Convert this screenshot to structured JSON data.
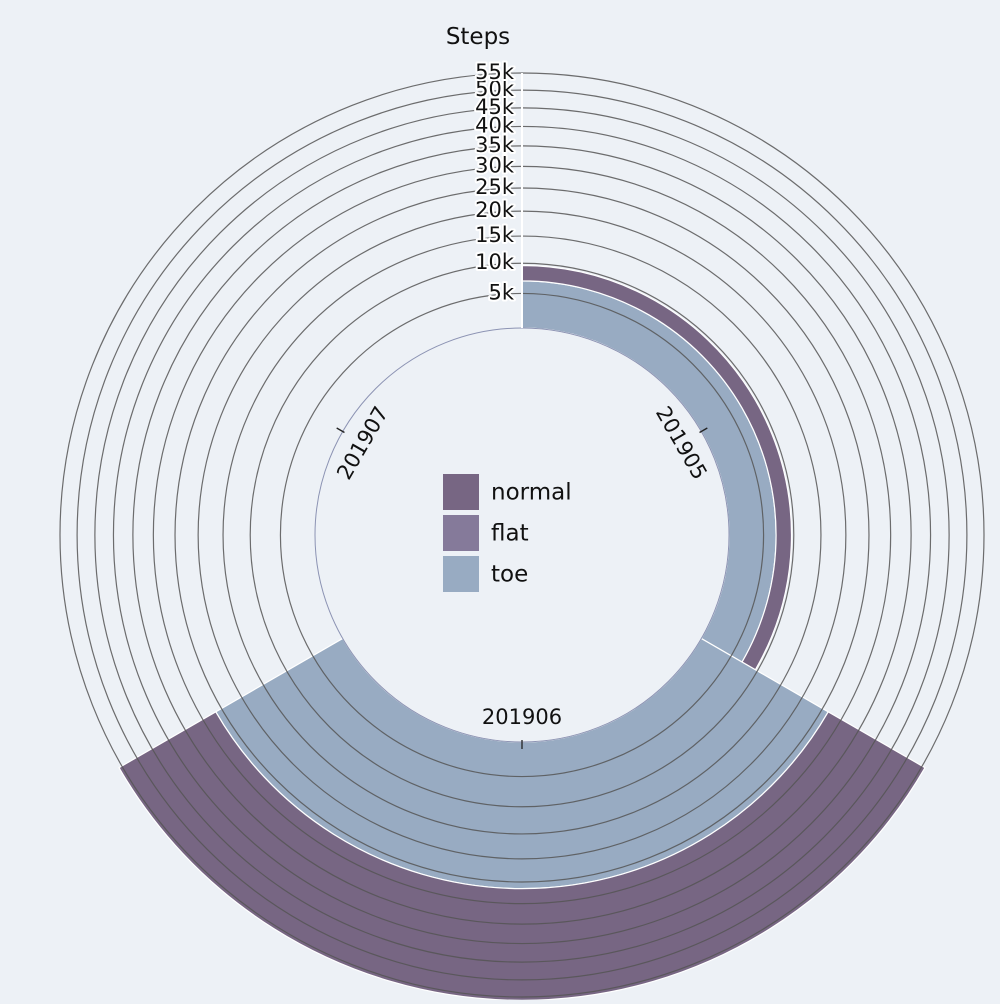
{
  "chart_data": {
    "type": "radial_stacked_bar",
    "title": "Steps",
    "categories": [
      "201905",
      "201906",
      "201907"
    ],
    "series": [
      {
        "name": "toe",
        "color": "#98abc2",
        "values": [
          7000,
          26500,
          0
        ]
      },
      {
        "name": "flat",
        "color": "#857a9a",
        "values": [
          0,
          0,
          0
        ]
      },
      {
        "name": "normal",
        "color": "#776683",
        "values": [
          2600,
          29500,
          0
        ]
      }
    ],
    "radial_axis": {
      "ticks": [
        5000,
        10000,
        15000,
        20000,
        25000,
        30000,
        35000,
        40000,
        45000,
        50000,
        55000
      ],
      "tick_labels": [
        "5k",
        "10k",
        "15k",
        "20k",
        "25k",
        "30k",
        "35k",
        "40k",
        "45k",
        "50k",
        "55k"
      ],
      "range": [
        0,
        55000
      ],
      "scale": "sqrt-like"
    },
    "legend": [
      "normal",
      "flat",
      "toe"
    ],
    "legend_position": "center"
  }
}
